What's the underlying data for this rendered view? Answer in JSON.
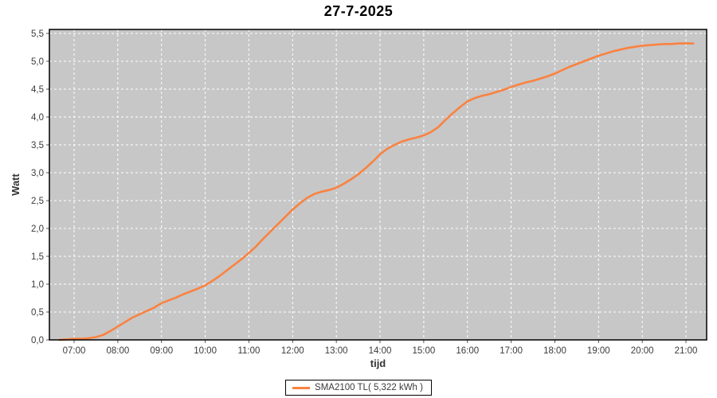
{
  "title": "27-7-2025",
  "colors": {
    "series": "#fa8240",
    "plot_bg": "#c7c7c7",
    "grid": "#ffffff",
    "plot_border": "#000000",
    "tick_text": "#3b3b3b",
    "axis_title_text": "#333333",
    "title_text": "#000000"
  },
  "legend": {
    "label": "SMA2100 TL( 5,322 kWh )"
  },
  "chart_data": {
    "type": "line",
    "title": "27-7-2025",
    "xlabel": "tijd",
    "ylabel": "Watt",
    "grid": true,
    "legend_position": "bottom",
    "ylim": [
      0.0,
      5.5
    ],
    "y_tick_step": 0.5,
    "y_tick_labels": [
      "0,0",
      "0,5",
      "1,0",
      "1,5",
      "2,0",
      "2,5",
      "3,0",
      "3,5",
      "4,0",
      "4,5",
      "5,0",
      "5,5"
    ],
    "x_tick_labels": [
      "07:00",
      "08:00",
      "09:00",
      "10:00",
      "11:00",
      "12:00",
      "13:00",
      "14:00",
      "15:00",
      "16:00",
      "17:00",
      "18:00",
      "19:00",
      "20:00",
      "21:00"
    ],
    "x_tick_hours": [
      7,
      8,
      9,
      10,
      11,
      12,
      13,
      14,
      15,
      16,
      17,
      18,
      19,
      20,
      21
    ],
    "series": [
      {
        "name": "SMA2100 TL( 5,322 kWh )",
        "color": "#fa8240",
        "total_kwh_label": "5,322",
        "points": [
          [
            "06:40",
            0.0
          ],
          [
            "06:50",
            0.01
          ],
          [
            "07:00",
            0.02
          ],
          [
            "07:10",
            0.02
          ],
          [
            "07:20",
            0.03
          ],
          [
            "07:30",
            0.05
          ],
          [
            "07:40",
            0.09
          ],
          [
            "07:50",
            0.16
          ],
          [
            "08:00",
            0.24
          ],
          [
            "08:10",
            0.32
          ],
          [
            "08:20",
            0.4
          ],
          [
            "08:30",
            0.46
          ],
          [
            "08:40",
            0.52
          ],
          [
            "08:50",
            0.58
          ],
          [
            "09:00",
            0.66
          ],
          [
            "09:10",
            0.71
          ],
          [
            "09:20",
            0.76
          ],
          [
            "09:30",
            0.82
          ],
          [
            "09:40",
            0.87
          ],
          [
            "09:50",
            0.92
          ],
          [
            "10:00",
            0.98
          ],
          [
            "10:10",
            1.06
          ],
          [
            "10:20",
            1.15
          ],
          [
            "10:30",
            1.25
          ],
          [
            "10:40",
            1.35
          ],
          [
            "10:50",
            1.45
          ],
          [
            "11:00",
            1.56
          ],
          [
            "11:10",
            1.68
          ],
          [
            "11:20",
            1.82
          ],
          [
            "11:30",
            1.95
          ],
          [
            "11:40",
            2.08
          ],
          [
            "11:50",
            2.21
          ],
          [
            "12:00",
            2.34
          ],
          [
            "12:10",
            2.45
          ],
          [
            "12:20",
            2.55
          ],
          [
            "12:30",
            2.62
          ],
          [
            "12:40",
            2.66
          ],
          [
            "12:50",
            2.69
          ],
          [
            "13:00",
            2.73
          ],
          [
            "13:10",
            2.8
          ],
          [
            "13:20",
            2.88
          ],
          [
            "13:30",
            2.97
          ],
          [
            "13:40",
            3.08
          ],
          [
            "13:50",
            3.2
          ],
          [
            "14:00",
            3.33
          ],
          [
            "14:10",
            3.43
          ],
          [
            "14:20",
            3.5
          ],
          [
            "14:30",
            3.56
          ],
          [
            "14:40",
            3.6
          ],
          [
            "14:50",
            3.63
          ],
          [
            "15:00",
            3.67
          ],
          [
            "15:10",
            3.73
          ],
          [
            "15:20",
            3.82
          ],
          [
            "15:30",
            3.95
          ],
          [
            "15:40",
            4.07
          ],
          [
            "15:50",
            4.18
          ],
          [
            "16:00",
            4.28
          ],
          [
            "16:10",
            4.34
          ],
          [
            "16:20",
            4.38
          ],
          [
            "16:30",
            4.41
          ],
          [
            "16:40",
            4.45
          ],
          [
            "16:50",
            4.49
          ],
          [
            "17:00",
            4.54
          ],
          [
            "17:10",
            4.58
          ],
          [
            "17:20",
            4.62
          ],
          [
            "17:30",
            4.65
          ],
          [
            "17:40",
            4.69
          ],
          [
            "17:50",
            4.73
          ],
          [
            "18:00",
            4.78
          ],
          [
            "18:10",
            4.84
          ],
          [
            "18:20",
            4.9
          ],
          [
            "18:30",
            4.95
          ],
          [
            "18:40",
            5.0
          ],
          [
            "18:50",
            5.05
          ],
          [
            "19:00",
            5.1
          ],
          [
            "19:10",
            5.14
          ],
          [
            "19:20",
            5.18
          ],
          [
            "19:30",
            5.21
          ],
          [
            "19:40",
            5.24
          ],
          [
            "19:50",
            5.26
          ],
          [
            "20:00",
            5.28
          ],
          [
            "20:10",
            5.29
          ],
          [
            "20:20",
            5.3
          ],
          [
            "20:30",
            5.31
          ],
          [
            "20:40",
            5.31
          ],
          [
            "20:50",
            5.32
          ],
          [
            "21:00",
            5.32
          ],
          [
            "21:10",
            5.32
          ]
        ]
      }
    ]
  }
}
